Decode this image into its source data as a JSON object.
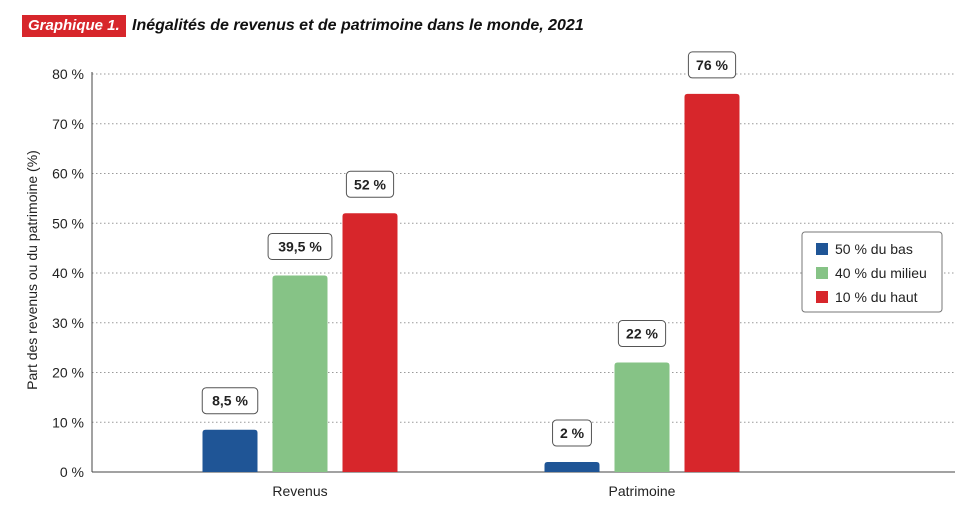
{
  "header": {
    "badge": "Graphique 1.",
    "title": "Inégalités de revenus et de patrimoine dans le monde, 2021"
  },
  "colors": {
    "badge": "#d7262b",
    "series": [
      "#1f5596",
      "#86c386",
      "#d7262b"
    ],
    "grid": "#9a9a9a",
    "axis": "#444444"
  },
  "chart_data": {
    "type": "bar",
    "title": "",
    "xlabel": "",
    "ylabel": "Part des revenus ou du patrimoine (%)",
    "ylim": [
      0,
      80
    ],
    "yticks": [
      0,
      10,
      20,
      30,
      40,
      50,
      60,
      70,
      80
    ],
    "ytick_labels": [
      "0 %",
      "10 %",
      "20 %",
      "30 %",
      "40 %",
      "50 %",
      "60 %",
      "70 %",
      "80 %"
    ],
    "grid": true,
    "legend_position": "right",
    "categories": [
      "Revenus",
      "Patrimoine"
    ],
    "series": [
      {
        "name": "50 % du bas",
        "values": [
          8.5,
          2
        ],
        "labels": [
          "8,5 %",
          "2 %"
        ]
      },
      {
        "name": "40 % du milieu",
        "values": [
          39.5,
          22
        ],
        "labels": [
          "39,5 %",
          "22 %"
        ]
      },
      {
        "name": "10 % du haut",
        "values": [
          52,
          76
        ],
        "labels": [
          "52 %",
          "76 %"
        ]
      }
    ]
  }
}
